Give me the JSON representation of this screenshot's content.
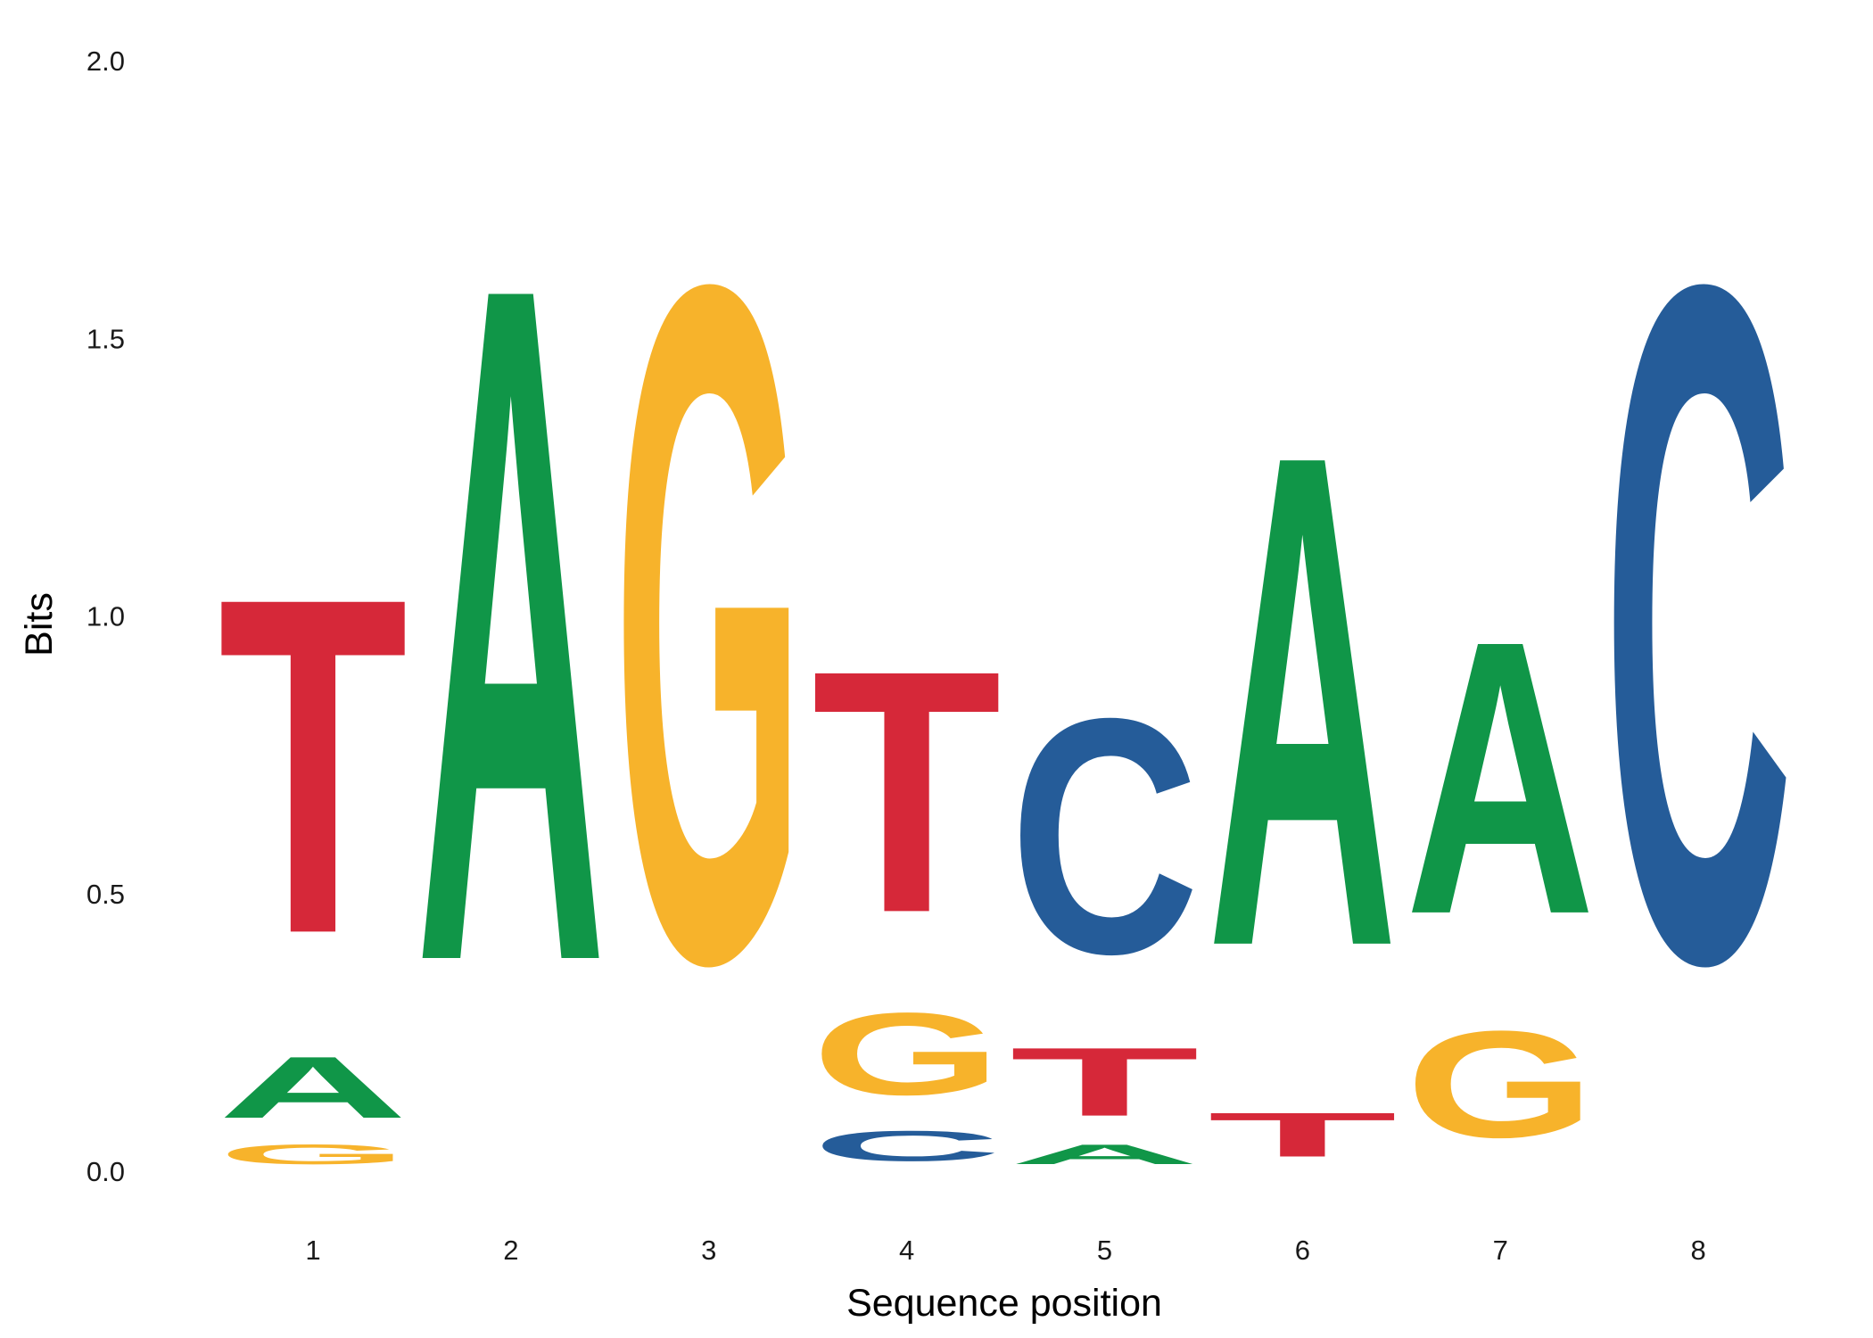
{
  "chart_data": {
    "type": "sequence-logo",
    "xlabel": "Sequence position",
    "ylabel": "Bits",
    "ylim": [
      0,
      2
    ],
    "yticks": [
      "0.0",
      "0.5",
      "1.0",
      "1.5",
      "2.0"
    ],
    "positions": [
      "1",
      "2",
      "3",
      "4",
      "5",
      "6",
      "7",
      "8"
    ],
    "colors": {
      "A": "#109648",
      "C": "#255c99",
      "G": "#f7b32b",
      "T": "#d62839"
    },
    "stacks": [
      [
        {
          "letter": "G",
          "bits": 0.06
        },
        {
          "letter": "A",
          "bits": 0.18
        },
        {
          "letter": "T",
          "bits": 0.97
        }
      ],
      [
        {
          "letter": "A",
          "bits": 1.95
        }
      ],
      [
        {
          "letter": "G",
          "bits": 1.95
        }
      ],
      [
        {
          "letter": "C",
          "bits": 0.09
        },
        {
          "letter": "G",
          "bits": 0.24
        },
        {
          "letter": "T",
          "bits": 0.7
        }
      ],
      [
        {
          "letter": "A",
          "bits": 0.06
        },
        {
          "letter": "T",
          "bits": 0.2
        },
        {
          "letter": "C",
          "bits": 0.68
        }
      ],
      [
        {
          "letter": "T",
          "bits": 0.13
        },
        {
          "letter": "A",
          "bits": 1.42
        }
      ],
      [
        {
          "letter": "G",
          "bits": 0.31
        },
        {
          "letter": "A",
          "bits": 0.79
        }
      ],
      [
        {
          "letter": "C",
          "bits": 1.95
        }
      ]
    ]
  }
}
